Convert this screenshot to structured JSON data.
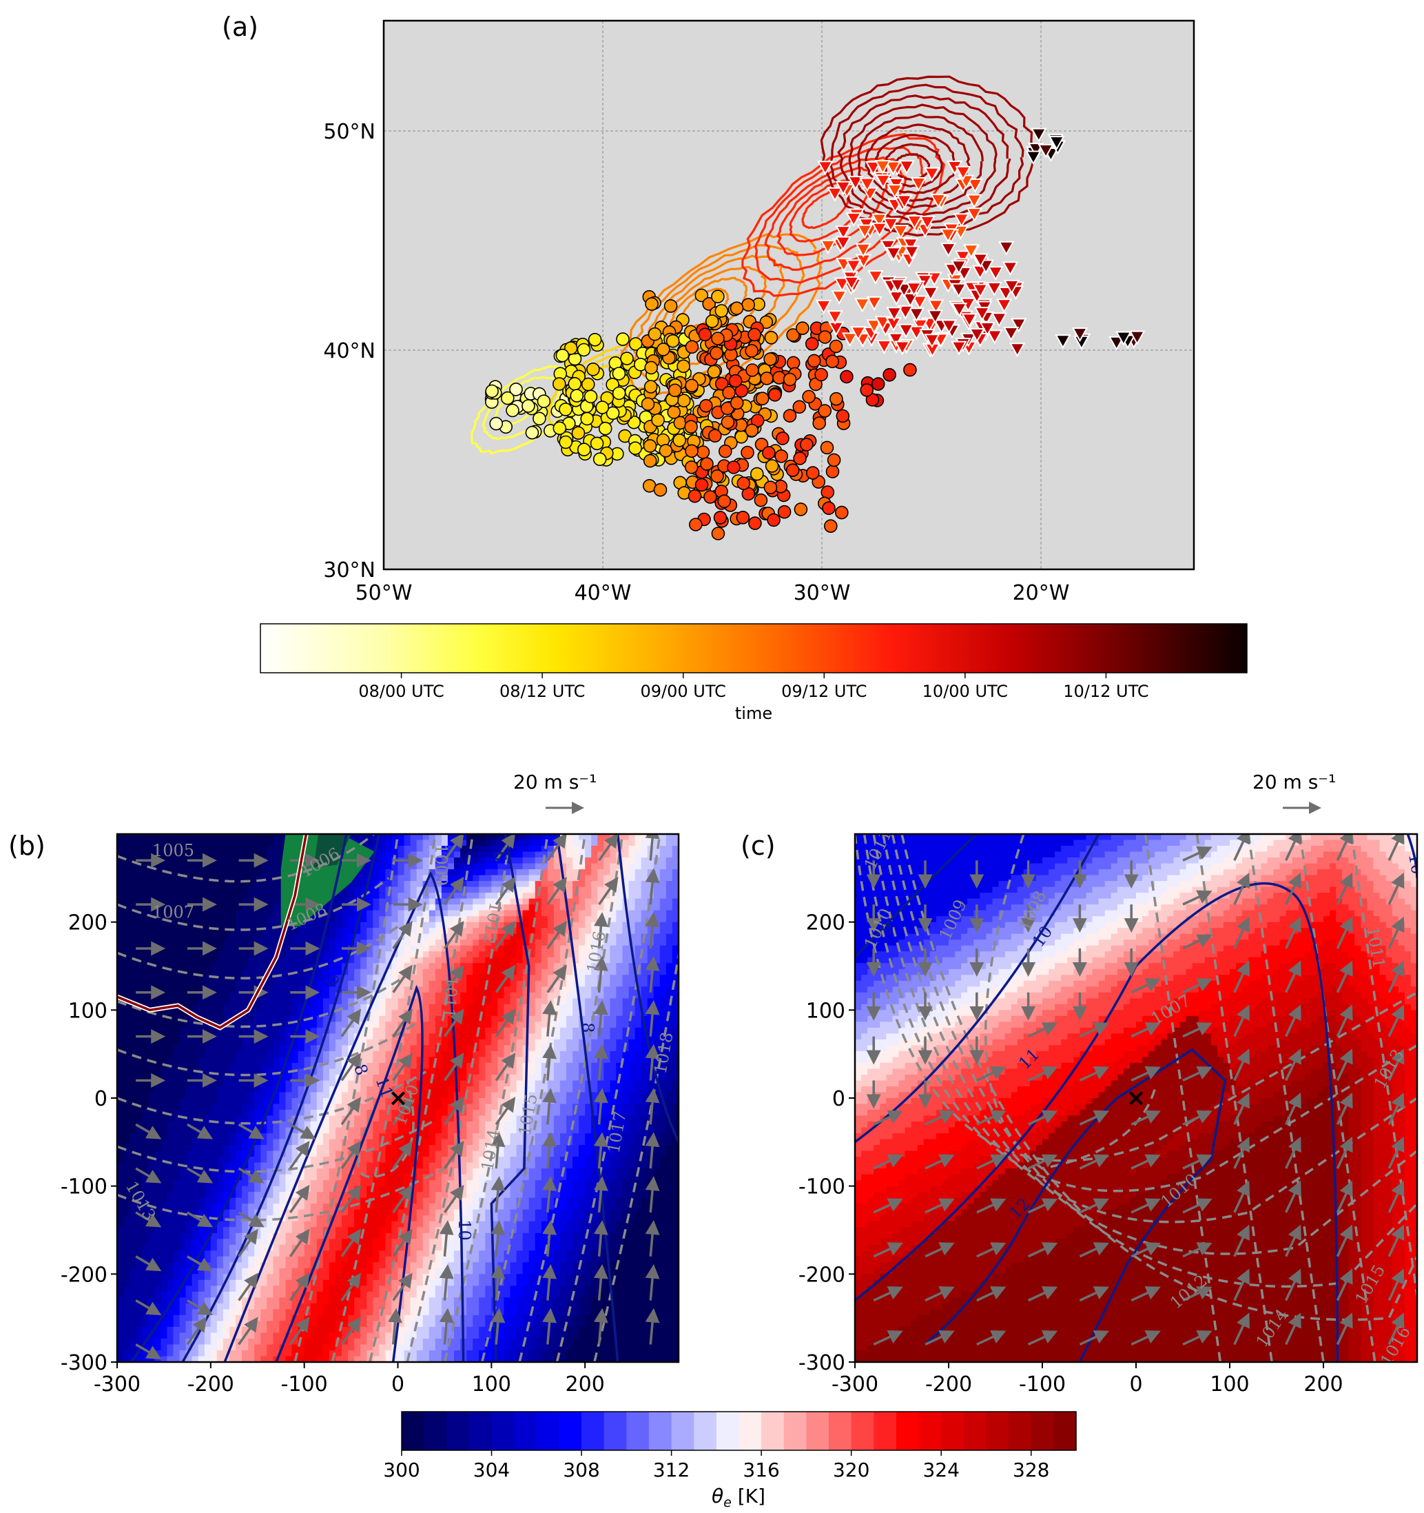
{
  "figure": {
    "panels": [
      {
        "id": "a",
        "label": "(a)"
      },
      {
        "id": "b",
        "label": "(b)"
      },
      {
        "id": "c",
        "label": "(c)"
      }
    ]
  },
  "chart_data": [
    {
      "panel": "(a)",
      "type": "scatter",
      "title": "",
      "projection": "lat-lon map",
      "background_color": "#d9d9d9",
      "grid": true,
      "xlim": [
        -50,
        -13
      ],
      "ylim": [
        30,
        55
      ],
      "x_ticks": [
        {
          "value": -50,
          "label": "50°W"
        },
        {
          "value": -40,
          "label": "40°W"
        },
        {
          "value": -30,
          "label": "30°W"
        },
        {
          "value": -20,
          "label": "20°W"
        }
      ],
      "y_ticks": [
        {
          "value": 30,
          "label": "30°N"
        },
        {
          "value": 40,
          "label": "40°N"
        },
        {
          "value": 50,
          "label": "50°N"
        }
      ],
      "series": [
        {
          "name": "trajectory start points (circles)",
          "marker": "circle",
          "color_by": "time",
          "clusters": [
            {
              "lon_range": [
                -45.5,
                -41
              ],
              "lat_range": [
                36,
                38.5
              ],
              "time_h": 0
            },
            {
              "lon_range": [
                -42,
                -36
              ],
              "lat_range": [
                35,
                40.5
              ],
              "time_h": 12
            },
            {
              "lon_range": [
                -38,
                -32
              ],
              "lat_range": [
                33,
                42.5
              ],
              "time_h": 24
            },
            {
              "lon_range": [
                -36,
                -29
              ],
              "lat_range": [
                31.5,
                41
              ],
              "time_h": 36
            },
            {
              "lon_range": [
                -29,
                -25.5
              ],
              "lat_range": [
                37,
                39.5
              ],
              "time_h": 44
            }
          ]
        },
        {
          "name": "trajectory end points (triangles)",
          "marker": "triangle-down",
          "color_by": "time",
          "clusters": [
            {
              "lon_range": [
                -30,
                -23
              ],
              "lat_range": [
                40,
                48.5
              ],
              "time_h": 40
            },
            {
              "lon_range": [
                -27,
                -21
              ],
              "lat_range": [
                40,
                45
              ],
              "time_h": 52
            },
            {
              "lon_range": [
                -21,
                -18.5
              ],
              "lat_range": [
                48.8,
                49.9
              ],
              "time_h": 70
            },
            {
              "lon_range": [
                -19,
                -15.5
              ],
              "lat_range": [
                40.3,
                40.8
              ],
              "time_h": 70
            }
          ]
        },
        {
          "name": "MSLP contours (cyclone track)",
          "type": "contour",
          "color_by": "time",
          "centers": [
            {
              "lon": -44,
              "lat": 37.5,
              "time_h": 6
            },
            {
              "lon": -40.5,
              "lat": 38.5,
              "time_h": 16
            },
            {
              "lon": -35.5,
              "lat": 42,
              "time_h": 28
            },
            {
              "lon": -30,
              "lat": 46.5,
              "time_h": 40
            },
            {
              "lon": -26,
              "lat": 48.3,
              "time_h": 56
            }
          ]
        }
      ],
      "colorbar": {
        "label": "time",
        "colormap": "hot_r",
        "range_h": [
          -12,
          72
        ],
        "ticks": [
          {
            "value_h": 0,
            "label": "08/00 UTC"
          },
          {
            "value_h": 12,
            "label": "08/12 UTC"
          },
          {
            "value_h": 24,
            "label": "09/00 UTC"
          },
          {
            "value_h": 36,
            "label": "09/12 UTC"
          },
          {
            "value_h": 48,
            "label": "10/00 UTC"
          },
          {
            "value_h": 60,
            "label": "10/12 UTC"
          }
        ]
      }
    },
    {
      "panel": "(b)",
      "type": "heatmap",
      "title": "",
      "xlim": [
        -300,
        300
      ],
      "ylim": [
        -300,
        300
      ],
      "x_ticks": [
        -300,
        -200,
        -100,
        0,
        100,
        200
      ],
      "y_ticks": [
        -300,
        -200,
        -100,
        0,
        100,
        200
      ],
      "x_tick_labels": [
        "-300",
        "-200",
        "-100",
        "0",
        "100",
        "200"
      ],
      "y_tick_labels": [
        "-300",
        "-200",
        "-100",
        "0",
        "100",
        "200"
      ],
      "center_marker": {
        "x": 0,
        "y": 0,
        "symbol": "×"
      },
      "quiver_key": {
        "label": "20 m s⁻¹",
        "value_ms": 20
      },
      "filled_field": "theta_e",
      "theta_e_bands_K": [
        {
          "x_range": [
            -300,
            -150
          ],
          "theta_e": 302,
          "note": "cold air west"
        },
        {
          "x_range": [
            -150,
            -110
          ],
          "theta_e": 312
        },
        {
          "x_range": [
            -110,
            60
          ],
          "theta_e": 322,
          "note": "warm tongue, max near x=0"
        },
        {
          "x_range": [
            60,
            160
          ],
          "theta_e": 315
        },
        {
          "x_range": [
            160,
            300
          ],
          "theta_e": 306
        }
      ],
      "pressure_contour_labels": [
        "1005",
        "1006",
        "1007",
        "1008",
        "1009",
        "1010",
        "1011",
        "1012",
        "1013",
        "1014",
        "1015",
        "1016",
        "1017",
        "1018"
      ],
      "blue_contour_labels": [
        "8",
        "9",
        "10",
        "11",
        "9",
        "8"
      ],
      "green_shading": true,
      "red_line": true
    },
    {
      "panel": "(c)",
      "type": "heatmap",
      "title": "",
      "xlim": [
        -300,
        300
      ],
      "ylim": [
        -300,
        300
      ],
      "x_ticks": [
        -300,
        -200,
        -100,
        0,
        100,
        200
      ],
      "y_ticks": [
        -300,
        -200,
        -100,
        0,
        100,
        200
      ],
      "x_tick_labels": [
        "-300",
        "-200",
        "-100",
        "0",
        "100",
        "200"
      ],
      "y_tick_labels": [
        "-300",
        "-200",
        "-100",
        "0",
        "100",
        "200"
      ],
      "center_marker": {
        "x": 0,
        "y": 0,
        "symbol": "×"
      },
      "quiver_key": {
        "label": "20 m s⁻¹",
        "value_ms": 20
      },
      "filled_field": "theta_e",
      "theta_e_bands_K": [
        {
          "region": "northwest corner",
          "theta_e": 308
        },
        {
          "region": "north band",
          "theta_e": 315
        },
        {
          "region": "center & south",
          "theta_e": 326
        },
        {
          "region": "core along x=y",
          "theta_e": 329
        }
      ],
      "pressure_contour_labels": [
        "1011",
        "1010",
        "1009",
        "1008",
        "1007",
        "1010",
        "1012",
        "1014",
        "1011",
        "1013",
        "1015",
        "1016"
      ],
      "blue_contour_labels": [
        "9",
        "10",
        "11",
        "12",
        "10"
      ]
    },
    {
      "panel": "colorbar",
      "type": "heatmap",
      "label_main": "θ",
      "label_sub": "e",
      "label_unit": " [K]",
      "colormap": "seismic",
      "range": [
        300,
        330
      ],
      "step": 1,
      "ticks": [
        300,
        304,
        308,
        312,
        316,
        320,
        324,
        328
      ],
      "tick_labels": [
        "300",
        "304",
        "308",
        "312",
        "316",
        "320",
        "324",
        "328"
      ]
    }
  ],
  "colors": {
    "map_bg": "#d9d9d9",
    "pressure_contour": "#8a8a8a",
    "theta_contour": "#0a1a8a",
    "wind_arrow": "#6e6e6e",
    "green_region": "#138a3c",
    "red_line": "#8b0000"
  }
}
